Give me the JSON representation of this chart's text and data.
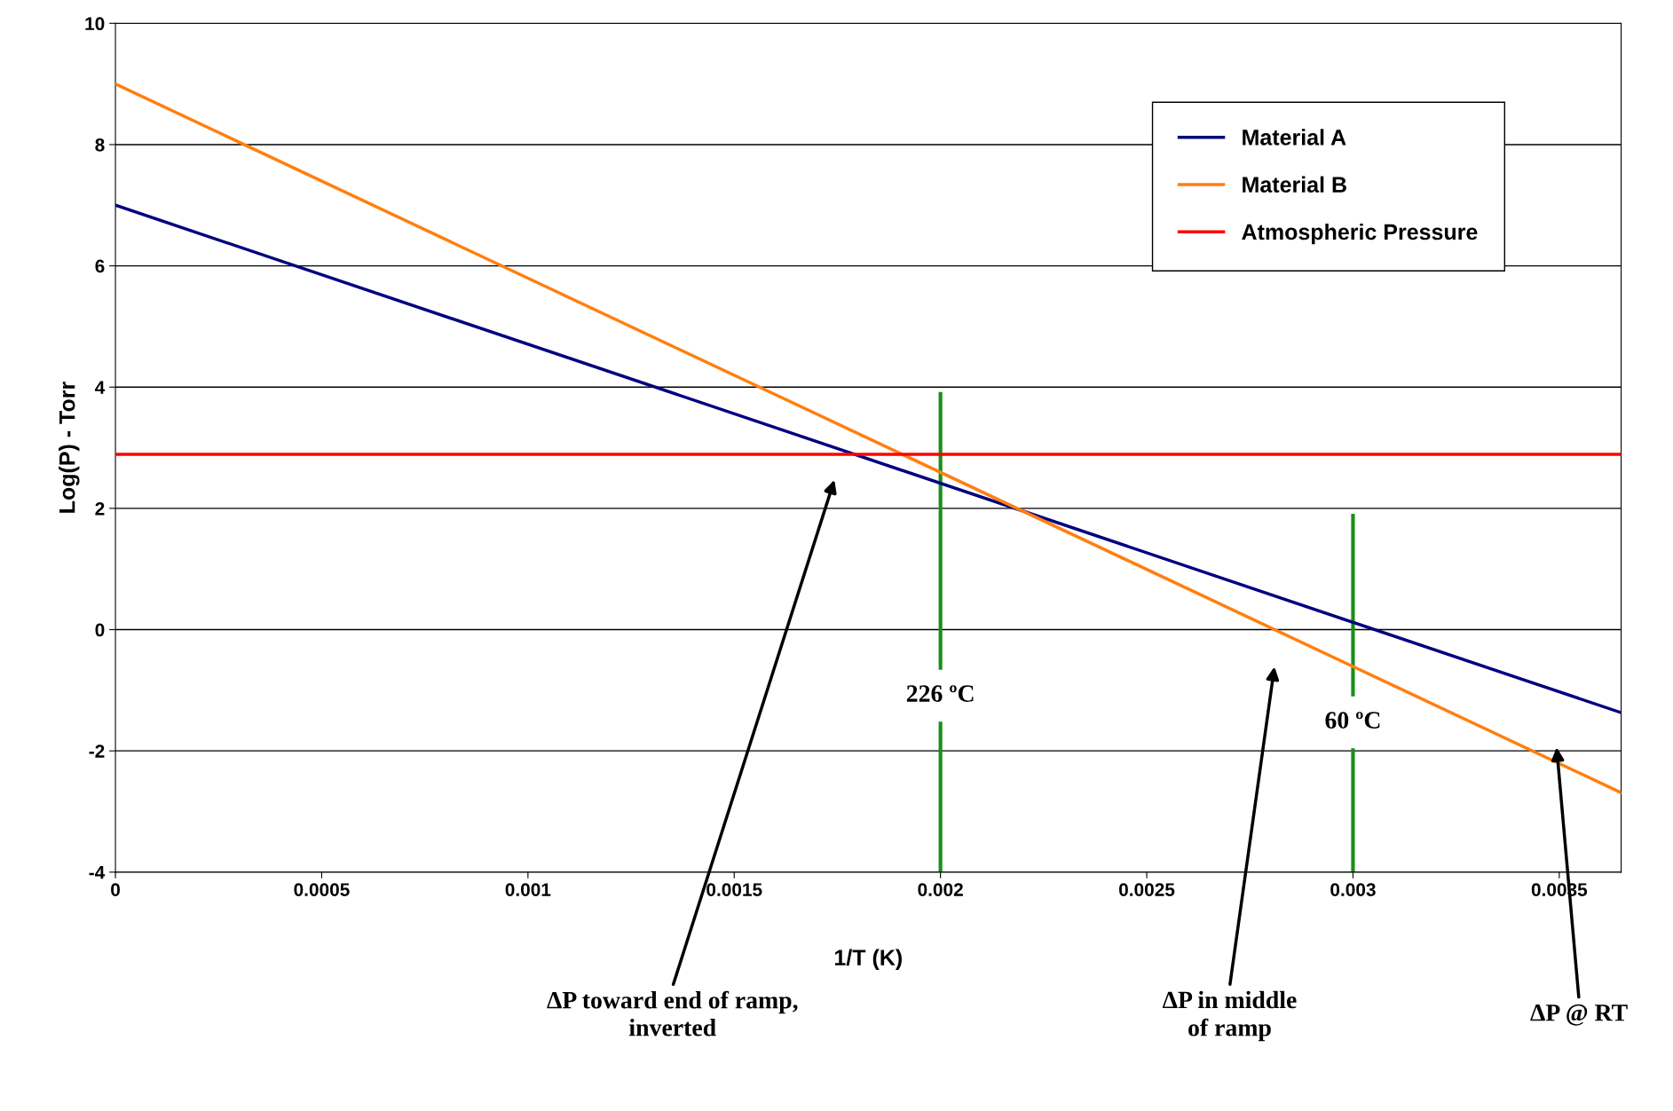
{
  "chart_data": {
    "type": "line",
    "xlabel": "1/T (K)",
    "ylabel": "Log(P) - Torr",
    "xlim": [
      0,
      0.00365
    ],
    "xticks": [
      0,
      0.0005,
      0.001,
      0.0015,
      0.002,
      0.0025,
      0.003,
      0.0035
    ],
    "ylim": [
      -4,
      10
    ],
    "yticks": [
      -4,
      -2,
      0,
      2,
      4,
      6,
      8,
      10
    ],
    "grid": "y",
    "legend": "top right",
    "marker": "none",
    "line_style": "solid",
    "series": [
      {
        "name": "Material A",
        "color": "#000080",
        "x": [
          0,
          0.00365
        ],
        "values": [
          7,
          -1.37
        ]
      },
      {
        "name": "Material B",
        "color": "#ff7f0e",
        "x": [
          0,
          0.00365
        ],
        "values": [
          9,
          -2.69
        ]
      },
      {
        "name": "Atmospheric Pressure",
        "color": "#ff0000",
        "x": [
          0,
          0.00365
        ],
        "values": [
          2.89,
          2.89
        ]
      },
      {
        "color": "#1a8f1a",
        "x": [
          0.002,
          0.002
        ],
        "values": [
          -4,
          3.89
        ]
      },
      {
        "color": "#1a8f1a",
        "x": [
          0.003,
          0.003
        ],
        "values": [
          -4,
          1.88
        ]
      }
    ],
    "annotations": [
      {
        "text": "226 ºC",
        "x": 0.002,
        "y": -1.09
      },
      {
        "text": "60 ºC",
        "x": 0.003,
        "y": -1.53
      },
      "ΔP toward end of ramp,\ninverted",
      "ΔP in middle\nof ramp",
      "ΔP @ RT"
    ]
  }
}
